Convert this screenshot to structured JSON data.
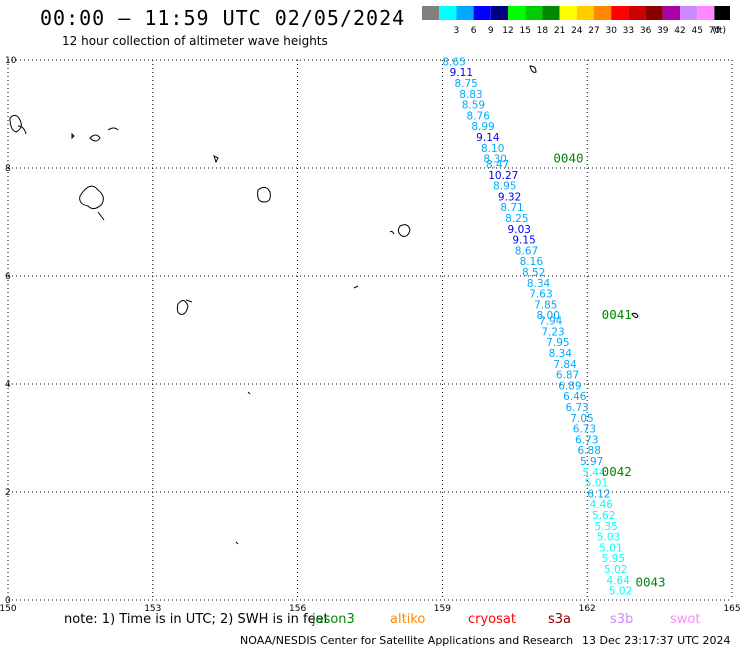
{
  "title": "00:00 – 11:59 UTC 02/05/2024",
  "subtitle": "12 hour collection of altimeter wave heights",
  "legend": {
    "unit": "(ft)",
    "bins": [
      {
        "label": "",
        "color": "#808080"
      },
      {
        "label": "3",
        "color": "#00ffff"
      },
      {
        "label": "6",
        "color": "#00aaff"
      },
      {
        "label": "9",
        "color": "#0000ff"
      },
      {
        "label": "12",
        "color": "#000080"
      },
      {
        "label": "15",
        "color": "#00ff00"
      },
      {
        "label": "18",
        "color": "#00cc00"
      },
      {
        "label": "21",
        "color": "#008800"
      },
      {
        "label": "24",
        "color": "#ffff00"
      },
      {
        "label": "27",
        "color": "#ffcc00"
      },
      {
        "label": "30",
        "color": "#ff8800"
      },
      {
        "label": "33",
        "color": "#ff0000"
      },
      {
        "label": "36",
        "color": "#cc0000"
      },
      {
        "label": "39",
        "color": "#880000"
      },
      {
        "label": "42",
        "color": "#aa00aa"
      },
      {
        "label": "45",
        "color": "#cc88ff"
      },
      {
        "label": "70",
        "color": "#ff88ff"
      },
      {
        "label": "",
        "color": "#000000"
      }
    ]
  },
  "map": {
    "lon_ticks": [
      "150",
      "153",
      "156",
      "159",
      "162",
      "165"
    ],
    "lat_ticks": [
      "0",
      "2",
      "4",
      "6",
      "8",
      "10"
    ],
    "lon_range": [
      150,
      165
    ],
    "lat_range": [
      0,
      10
    ]
  },
  "time_labels": [
    {
      "text": "0040",
      "lon": 161.3,
      "lat": 8.1
    },
    {
      "text": "0041",
      "lon": 162.3,
      "lat": 5.2
    },
    {
      "text": "0042",
      "lon": 162.3,
      "lat": 2.3
    },
    {
      "text": "0043",
      "lon": 163.0,
      "lat": 0.25
    }
  ],
  "observations": [
    {
      "value": "8.65",
      "lon": 159.0,
      "lat": 9.9,
      "color": "#00aaff"
    },
    {
      "value": "9.11",
      "lon": 159.15,
      "lat": 9.7,
      "color": "#0000ff"
    },
    {
      "value": "8.75",
      "lon": 159.25,
      "lat": 9.5,
      "color": "#00aaff"
    },
    {
      "value": "8.83",
      "lon": 159.35,
      "lat": 9.3,
      "color": "#00aaff"
    },
    {
      "value": "8.59",
      "lon": 159.4,
      "lat": 9.1,
      "color": "#00aaff"
    },
    {
      "value": "8.76",
      "lon": 159.5,
      "lat": 8.9,
      "color": "#00aaff"
    },
    {
      "value": "8.99",
      "lon": 159.6,
      "lat": 8.7,
      "color": "#00aaff"
    },
    {
      "value": "9.14",
      "lon": 159.7,
      "lat": 8.5,
      "color": "#0000ff"
    },
    {
      "value": "8.10",
      "lon": 159.8,
      "lat": 8.3,
      "color": "#00aaff"
    },
    {
      "value": "8.30",
      "lon": 159.85,
      "lat": 8.1,
      "color": "#00aaff"
    },
    {
      "value": "8.47",
      "lon": 159.9,
      "lat": 8.0,
      "color": "#00aaff"
    },
    {
      "value": "10.27",
      "lon": 159.95,
      "lat": 7.8,
      "color": "#0000ff"
    },
    {
      "value": "8.95",
      "lon": 160.05,
      "lat": 7.6,
      "color": "#00aaff"
    },
    {
      "value": "9.32",
      "lon": 160.15,
      "lat": 7.4,
      "color": "#0000ff"
    },
    {
      "value": "8.71",
      "lon": 160.2,
      "lat": 7.2,
      "color": "#00aaff"
    },
    {
      "value": "8.25",
      "lon": 160.3,
      "lat": 7.0,
      "color": "#00aaff"
    },
    {
      "value": "9.03",
      "lon": 160.35,
      "lat": 6.8,
      "color": "#0000ff"
    },
    {
      "value": "9.15",
      "lon": 160.45,
      "lat": 6.6,
      "color": "#0000ff"
    },
    {
      "value": "8.67",
      "lon": 160.5,
      "lat": 6.4,
      "color": "#00aaff"
    },
    {
      "value": "8.16",
      "lon": 160.6,
      "lat": 6.2,
      "color": "#00aaff"
    },
    {
      "value": "8.52",
      "lon": 160.65,
      "lat": 6.0,
      "color": "#00aaff"
    },
    {
      "value": "8.34",
      "lon": 160.75,
      "lat": 5.8,
      "color": "#00aaff"
    },
    {
      "value": "7.63",
      "lon": 160.8,
      "lat": 5.6,
      "color": "#00aaff"
    },
    {
      "value": "7.85",
      "lon": 160.9,
      "lat": 5.4,
      "color": "#00aaff"
    },
    {
      "value": "8.00",
      "lon": 160.95,
      "lat": 5.2,
      "color": "#00aaff"
    },
    {
      "value": "7.94",
      "lon": 161.0,
      "lat": 5.1,
      "color": "#00aaff"
    },
    {
      "value": "7.23",
      "lon": 161.05,
      "lat": 4.9,
      "color": "#00aaff"
    },
    {
      "value": "7.95",
      "lon": 161.15,
      "lat": 4.7,
      "color": "#00aaff"
    },
    {
      "value": "8.34",
      "lon": 161.2,
      "lat": 4.5,
      "color": "#00aaff"
    },
    {
      "value": "7.84",
      "lon": 161.3,
      "lat": 4.3,
      "color": "#00aaff"
    },
    {
      "value": "6.87",
      "lon": 161.35,
      "lat": 4.1,
      "color": "#00aaff"
    },
    {
      "value": "6.89",
      "lon": 161.4,
      "lat": 3.9,
      "color": "#00aaff"
    },
    {
      "value": "6.46",
      "lon": 161.5,
      "lat": 3.7,
      "color": "#00aaff"
    },
    {
      "value": "6.73",
      "lon": 161.55,
      "lat": 3.5,
      "color": "#00aaff"
    },
    {
      "value": "7.05",
      "lon": 161.65,
      "lat": 3.3,
      "color": "#00aaff"
    },
    {
      "value": "6.73",
      "lon": 161.7,
      "lat": 3.1,
      "color": "#00aaff"
    },
    {
      "value": "6.73",
      "lon": 161.75,
      "lat": 2.9,
      "color": "#00aaff"
    },
    {
      "value": "6.88",
      "lon": 161.8,
      "lat": 2.7,
      "color": "#00aaff"
    },
    {
      "value": "5.97",
      "lon": 161.85,
      "lat": 2.5,
      "color": "#00aaff"
    },
    {
      "value": "5.44",
      "lon": 161.9,
      "lat": 2.3,
      "color": "#00ffff"
    },
    {
      "value": "5.01",
      "lon": 161.95,
      "lat": 2.1,
      "color": "#00ffff"
    },
    {
      "value": "6.12",
      "lon": 162.0,
      "lat": 1.9,
      "color": "#00aaff"
    },
    {
      "value": "4.46",
      "lon": 162.05,
      "lat": 1.7,
      "color": "#00ffff"
    },
    {
      "value": "5.62",
      "lon": 162.1,
      "lat": 1.5,
      "color": "#00ffff"
    },
    {
      "value": "5.35",
      "lon": 162.15,
      "lat": 1.3,
      "color": "#00ffff"
    },
    {
      "value": "5.03",
      "lon": 162.2,
      "lat": 1.1,
      "color": "#00ffff"
    },
    {
      "value": "5.01",
      "lon": 162.25,
      "lat": 0.9,
      "color": "#00ffff"
    },
    {
      "value": "5.95",
      "lon": 162.3,
      "lat": 0.7,
      "color": "#00ffff"
    },
    {
      "value": "5.02",
      "lon": 162.35,
      "lat": 0.5,
      "color": "#00ffff"
    },
    {
      "value": "4.64",
      "lon": 162.4,
      "lat": 0.3,
      "color": "#00ffff"
    },
    {
      "value": "5.02",
      "lon": 162.45,
      "lat": 0.1,
      "color": "#00ffff"
    }
  ],
  "note": "note:  1) Time is in UTC; 2) SWH is in feet",
  "missions": [
    {
      "name": "jason3",
      "color": "#008800"
    },
    {
      "name": "altiko",
      "color": "#ff8800"
    },
    {
      "name": "cryosat",
      "color": "#ff0000"
    },
    {
      "name": "s3a",
      "color": "#880000"
    },
    {
      "name": "s3b",
      "color": "#cc88ff"
    },
    {
      "name": "swot",
      "color": "#ff88ff"
    }
  ],
  "credit": "NOAA/NESDIS Center for Satellite Applications and Research",
  "timestamp": "13 Dec 23:17:37 UTC 2024"
}
